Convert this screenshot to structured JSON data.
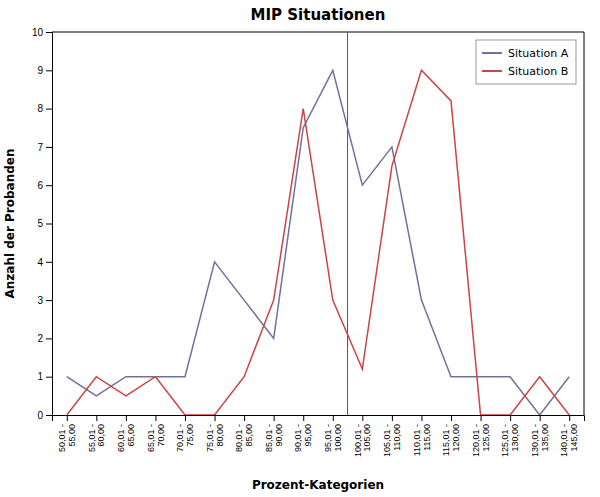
{
  "chart_data": {
    "type": "line",
    "title": "MIP Situationen",
    "x_label": "Prozent-Kategorien",
    "y_label": "Anzahl der Probanden",
    "categories": [
      "50,01 -\n55,00",
      "55,01 -\n60,00",
      "60,01 -\n65,00",
      "65,01 -\n70,00",
      "70,01 -\n75,00",
      "75,01 -\n80,00",
      "80,01 -\n85,00",
      "85,01 -\n90,00",
      "90,01 -\n95,00",
      "95,01 -\n100,00",
      "100,01 -\n105,00",
      "105,01 -\n110,00",
      "110,01 -\n115,00",
      "115,01 -\n120,00",
      "120,01 -\n125,00",
      "125,01 -\n130,00",
      "130,01 -\n135,00",
      "140,01 -\n145,00"
    ],
    "series": [
      {
        "name": "Situation A",
        "color": "#7070a0",
        "values": [
          1,
          0.5,
          1,
          1,
          1,
          4,
          3,
          2,
          7.5,
          9,
          6,
          7,
          3,
          1,
          1,
          1,
          0,
          1
        ]
      },
      {
        "name": "Situation B",
        "color": "#cc4444",
        "values": [
          0,
          1,
          0.5,
          1,
          0,
          0,
          1,
          3,
          8,
          3,
          1.2,
          6.5,
          9,
          8.2,
          0,
          0,
          1,
          0
        ]
      }
    ],
    "vline_x": 9.5,
    "vline_color": "#555555",
    "ylim": [
      0,
      10
    ],
    "yticks": [
      0,
      1,
      2,
      3,
      4,
      5,
      6,
      7,
      8,
      9,
      10
    ],
    "grid": false,
    "legend": "upper right"
  }
}
